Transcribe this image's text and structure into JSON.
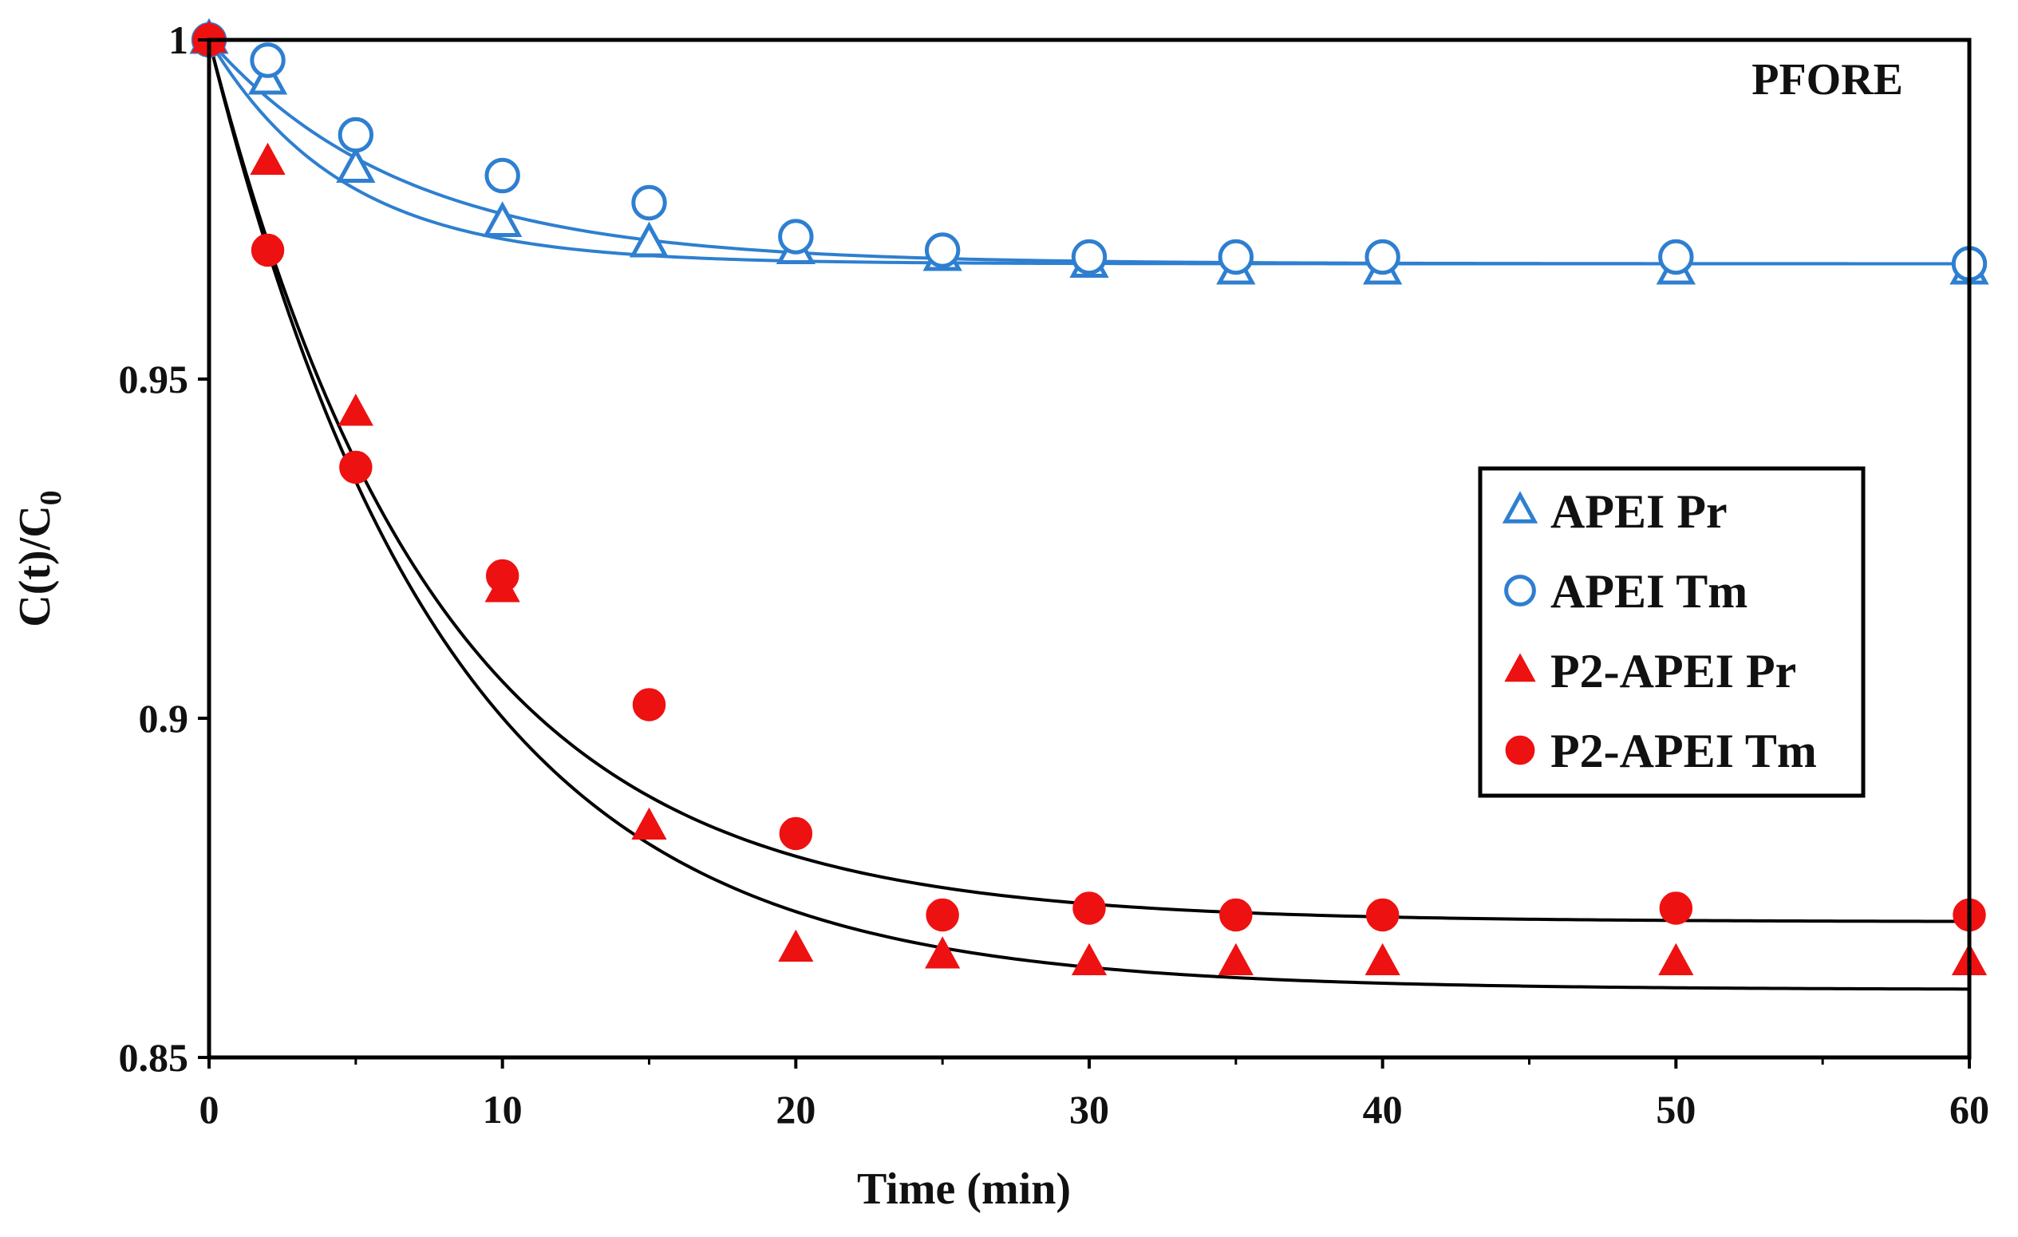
{
  "chart_data": {
    "type": "scatter",
    "title": "",
    "annotation": "PFORE",
    "xlabel": "Time  (min)",
    "ylabel": "C(t)/C",
    "ylabel_subscript": "0",
    "xlim": [
      0,
      60
    ],
    "ylim": [
      0.85,
      1
    ],
    "xticks": [
      0,
      10,
      20,
      30,
      40,
      50,
      60
    ],
    "xtick_labels": [
      "0",
      "10",
      "20",
      "30",
      "40",
      "50",
      "60"
    ],
    "yticks": [
      0.85,
      0.9,
      0.95,
      1
    ],
    "ytick_labels": [
      "0.85",
      "0.9",
      "0.95",
      "1"
    ],
    "grid": false,
    "legend_position": "center-right",
    "series": [
      {
        "name": "APEI Pr",
        "marker": "triangle-open",
        "color": "#2e7fd0",
        "x": [
          0,
          2,
          5,
          10,
          15,
          20,
          25,
          30,
          35,
          40,
          50,
          60
        ],
        "y": [
          1.0,
          0.994,
          0.981,
          0.973,
          0.97,
          0.969,
          0.968,
          0.967,
          0.966,
          0.966,
          0.966,
          0.966
        ],
        "fit": {
          "color": "#2e7fd0",
          "y0": 1.0,
          "y_inf": 0.967,
          "k": 0.22
        }
      },
      {
        "name": "APEI Tm",
        "marker": "circle-open",
        "color": "#2e7fd0",
        "x": [
          0,
          2,
          5,
          10,
          15,
          20,
          25,
          30,
          35,
          40,
          50,
          60
        ],
        "y": [
          1.0,
          0.997,
          0.986,
          0.98,
          0.976,
          0.971,
          0.969,
          0.968,
          0.968,
          0.968,
          0.968,
          0.967
        ],
        "fit": {
          "color": "#2e7fd0",
          "y0": 1.0,
          "y_inf": 0.967,
          "k": 0.15
        }
      },
      {
        "name": "P2-APEI Pr",
        "marker": "triangle-filled",
        "color": "#ee1111",
        "x": [
          0,
          2,
          5,
          10,
          15,
          20,
          25,
          30,
          35,
          40,
          50,
          60
        ],
        "y": [
          1.0,
          0.982,
          0.945,
          0.919,
          0.884,
          0.866,
          0.865,
          0.864,
          0.864,
          0.864,
          0.864,
          0.864
        ],
        "fit": {
          "color": "#000000",
          "y0": 1.0,
          "y_inf": 0.86,
          "k": 0.125
        }
      },
      {
        "name": "P2-APEI Tm",
        "marker": "circle-filled",
        "color": "#ee1111",
        "x": [
          0,
          2,
          5,
          10,
          15,
          20,
          25,
          30,
          35,
          40,
          50,
          60
        ],
        "y": [
          1.0,
          0.969,
          0.937,
          0.921,
          0.902,
          0.883,
          0.871,
          0.872,
          0.871,
          0.871,
          0.872,
          0.871
        ],
        "fit": {
          "color": "#000000",
          "y0": 1.0,
          "y_inf": 0.87,
          "k": 0.13
        }
      }
    ]
  }
}
